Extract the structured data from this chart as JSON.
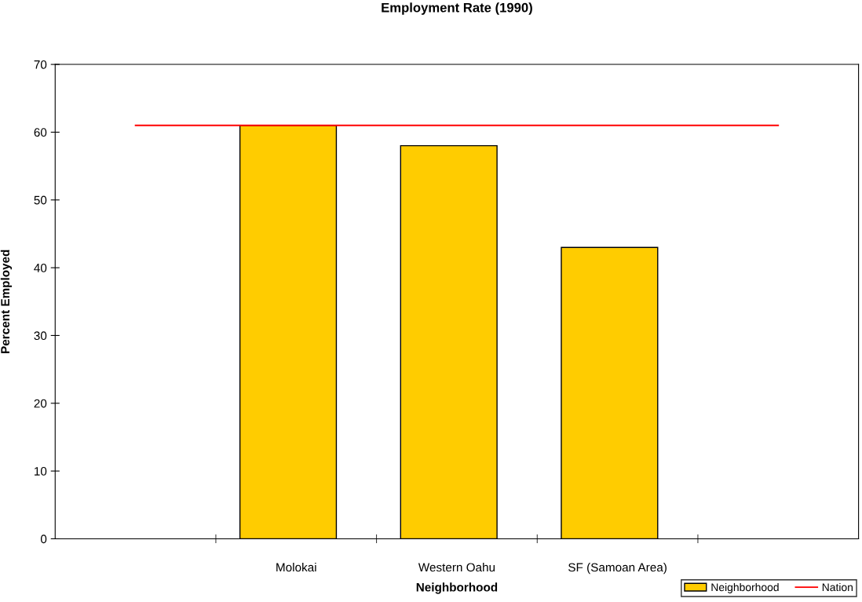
{
  "chart_data": {
    "type": "bar",
    "title": "Employment Rate (1990)",
    "xlabel": "Neighborhood",
    "ylabel": "Percent Employed",
    "categories": [
      null,
      "Molokai",
      "Western Oahu",
      "SF (Samoan Area)",
      null
    ],
    "series": [
      {
        "name": "Neighborhood",
        "color": "#ffcc00",
        "values": [
          null,
          61,
          58,
          43,
          null
        ]
      },
      {
        "name": "Nation",
        "type": "line",
        "color": "#ff0000",
        "values": [
          61,
          61,
          61,
          61,
          61
        ]
      }
    ],
    "ylim": [
      0,
      70
    ],
    "yticks": [
      0,
      10,
      20,
      30,
      40,
      50,
      60,
      70
    ],
    "legend": "bottom right"
  }
}
